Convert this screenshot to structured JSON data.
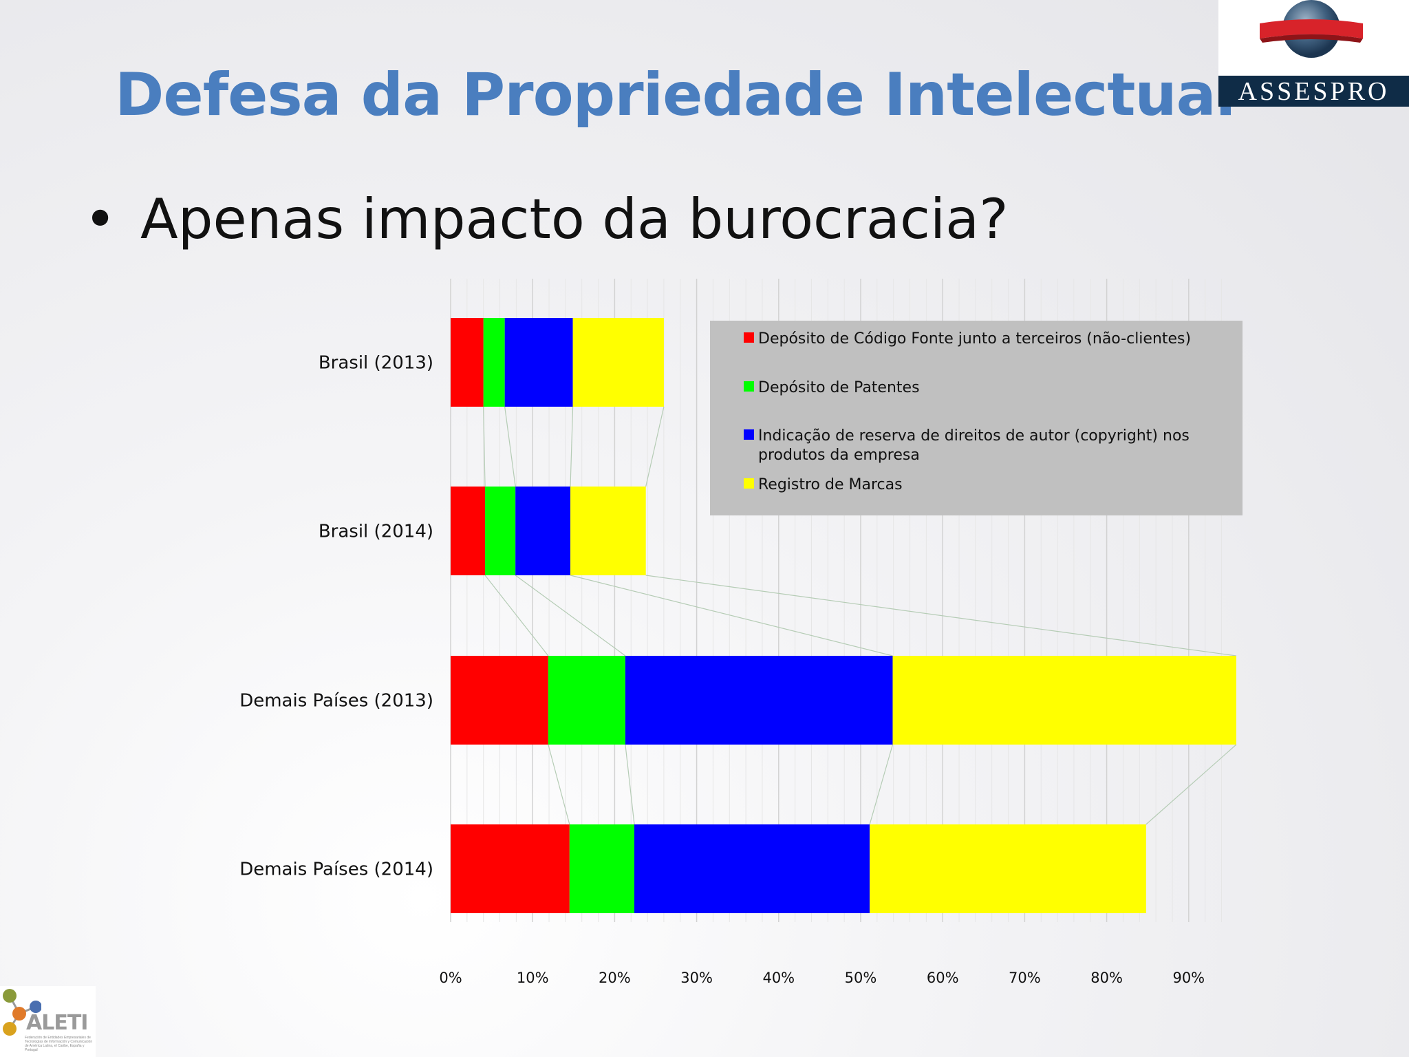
{
  "slide": {
    "title": "Defesa da Propriedade Intelectual",
    "bullet": "Apenas impacto da burocracia?",
    "bullet_symbol": "•"
  },
  "logos": {
    "assespro": "ASSESPRO",
    "aleti": "ALETI",
    "aleti_tagline": "Federación de Entidades Empresariales de Tecnologías de Información y Comunicación de América Latina, el Caribe, España y Portugal"
  },
  "colors": {
    "title": "#4a7ebf",
    "series": [
      "#ff0000",
      "#00ff00",
      "#0000ff",
      "#ffff00"
    ],
    "legend_bg": "#c0c0c0"
  },
  "chart_data": {
    "type": "bar",
    "orientation": "horizontal",
    "stacked": true,
    "categories": [
      "Brasil (2013)",
      "Brasil (2014)",
      "Demais Países (2013)",
      "Demais Países (2014)"
    ],
    "series": [
      {
        "name": "Depósito de Código Fonte junto a terceiros (não-clientes)",
        "values": [
          4.0,
          4.2,
          11.9,
          14.5
        ]
      },
      {
        "name": "Depósito de Patentes",
        "values": [
          2.6,
          3.7,
          9.4,
          7.9
        ]
      },
      {
        "name": "Indicação de reserva de direitos de autor (copyright) nos produtos da empresa",
        "values": [
          8.3,
          6.7,
          32.6,
          28.7
        ]
      },
      {
        "name": "Registro de Marcas",
        "values": [
          11.1,
          9.2,
          41.9,
          33.7
        ]
      }
    ],
    "xlim": [
      0,
      95
    ],
    "xticks": [
      "0%",
      "10%",
      "20%",
      "30%",
      "40%",
      "50%",
      "60%",
      "70%",
      "80%",
      "90%"
    ],
    "xtick_values": [
      0,
      10,
      20,
      30,
      40,
      50,
      60,
      70,
      80,
      90
    ],
    "grid": true,
    "series_lines": true,
    "legend_position": "top-right"
  }
}
